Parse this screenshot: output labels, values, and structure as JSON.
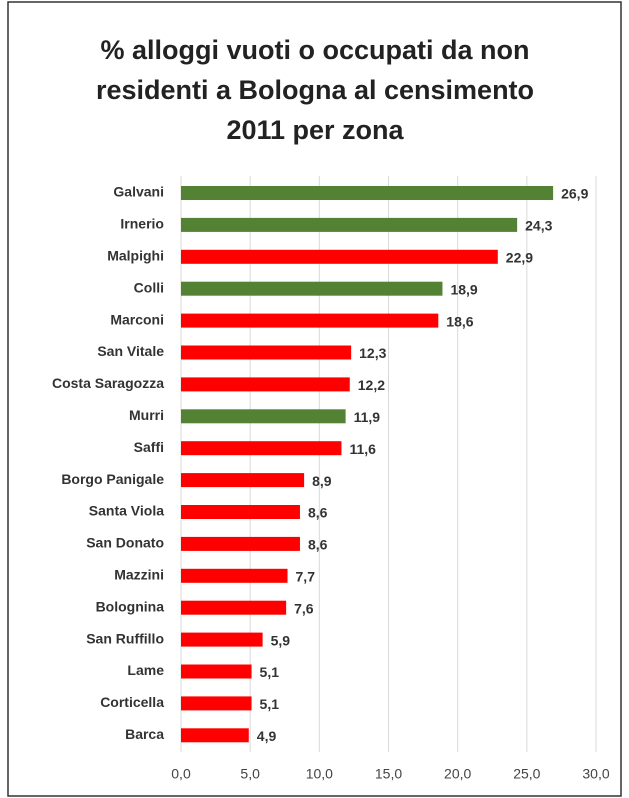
{
  "chart_data": {
    "type": "bar",
    "orientation": "horizontal",
    "title": "% alloggi vuoti o occupati da non residenti a Bologna al censimento 2011 per zona",
    "categories": [
      "Galvani",
      "Irnerio",
      "Malpighi",
      "Colli",
      "Marconi",
      "San Vitale",
      "Costa Saragozza",
      "Murri",
      "Saffi",
      "Borgo Panigale",
      "Santa Viola",
      "San Donato",
      "Mazzini",
      "Bolognina",
      "San Ruffillo",
      "Lame",
      "Corticella",
      "Barca"
    ],
    "values": [
      26.9,
      24.3,
      22.9,
      18.9,
      18.6,
      12.3,
      12.2,
      11.9,
      11.6,
      8.9,
      8.6,
      8.6,
      7.7,
      7.6,
      5.9,
      5.1,
      5.1,
      4.9
    ],
    "value_labels": [
      "26,9",
      "24,3",
      "22,9",
      "18,9",
      "18,6",
      "12,3",
      "12,2",
      "11,9",
      "11,6",
      "8,9",
      "8,6",
      "8,6",
      "7,7",
      "7,6",
      "5,9",
      "5,1",
      "5,1",
      "4,9"
    ],
    "colors": [
      "#548235",
      "#548235",
      "#ff0000",
      "#548235",
      "#ff0000",
      "#ff0000",
      "#ff0000",
      "#548235",
      "#ff0000",
      "#ff0000",
      "#ff0000",
      "#ff0000",
      "#ff0000",
      "#ff0000",
      "#ff0000",
      "#ff0000",
      "#ff0000",
      "#ff0000"
    ],
    "xlim": [
      0,
      30
    ],
    "xticks": [
      {
        "value": 0,
        "label": "0,0"
      },
      {
        "value": 5,
        "label": "5,0"
      },
      {
        "value": 10,
        "label": "10,0"
      },
      {
        "value": 15,
        "label": "15,0"
      },
      {
        "value": 20,
        "label": "20,0"
      },
      {
        "value": 25,
        "label": "25,0"
      },
      {
        "value": 30,
        "label": "30,0"
      }
    ],
    "grid": true
  }
}
